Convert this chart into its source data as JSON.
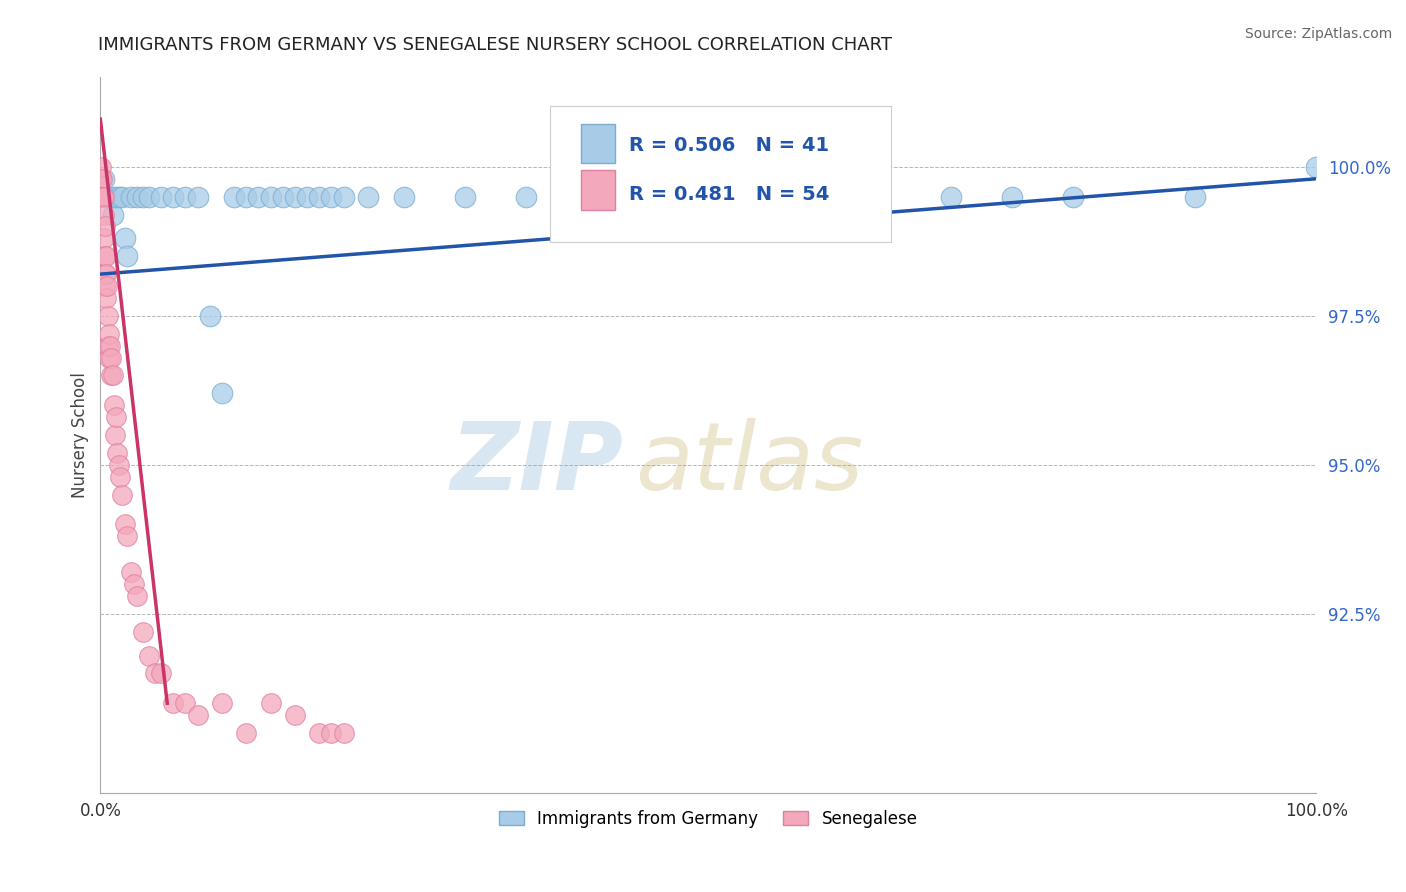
{
  "title": "IMMIGRANTS FROM GERMANY VS SENEGALESE NURSERY SCHOOL CORRELATION CHART",
  "source": "Source: ZipAtlas.com",
  "ylabel": "Nursery School",
  "legend_blue_label": "Immigrants from Germany",
  "legend_pink_label": "Senegalese",
  "R_blue": 0.506,
  "N_blue": 41,
  "R_pink": 0.481,
  "N_pink": 54,
  "blue_color": "#A8CCE8",
  "pink_color": "#F4A8BC",
  "blue_line_color": "#2255AA",
  "pink_line_color": "#CC3366",
  "watermark_zip": "ZIP",
  "watermark_atlas": "atlas",
  "blue_x": [
    0.3,
    0.5,
    0.8,
    1.0,
    1.2,
    1.5,
    1.8,
    2.0,
    2.2,
    2.5,
    3.0,
    3.5,
    4.0,
    5.0,
    6.0,
    7.0,
    8.0,
    9.0,
    10.0,
    11.0,
    12.0,
    13.0,
    14.0,
    15.0,
    16.0,
    17.0,
    18.0,
    19.0,
    20.0,
    22.0,
    25.0,
    30.0,
    35.0,
    40.0,
    50.0,
    60.0,
    70.0,
    75.0,
    80.0,
    90.0,
    100.0
  ],
  "blue_y": [
    99.8,
    99.5,
    99.5,
    99.2,
    99.5,
    99.5,
    99.5,
    98.8,
    98.5,
    99.5,
    99.5,
    99.5,
    99.5,
    99.5,
    99.5,
    99.5,
    99.5,
    97.5,
    96.2,
    99.5,
    99.5,
    99.5,
    99.5,
    99.5,
    99.5,
    99.5,
    99.5,
    99.5,
    99.5,
    99.5,
    99.5,
    99.5,
    99.5,
    99.5,
    99.5,
    99.5,
    99.5,
    99.5,
    99.5,
    99.5,
    100.0
  ],
  "pink_x": [
    0.05,
    0.08,
    0.1,
    0.12,
    0.15,
    0.18,
    0.2,
    0.22,
    0.25,
    0.28,
    0.3,
    0.32,
    0.35,
    0.38,
    0.4,
    0.42,
    0.45,
    0.48,
    0.5,
    0.55,
    0.6,
    0.65,
    0.7,
    0.75,
    0.8,
    0.85,
    0.9,
    1.0,
    1.1,
    1.2,
    1.3,
    1.4,
    1.5,
    1.6,
    1.8,
    2.0,
    2.2,
    2.5,
    2.8,
    3.0,
    3.5,
    4.0,
    4.5,
    5.0,
    6.0,
    7.0,
    8.0,
    10.0,
    12.0,
    14.0,
    16.0,
    18.0,
    19.0,
    20.0
  ],
  "pink_y": [
    99.8,
    100.0,
    99.5,
    99.8,
    99.5,
    99.5,
    99.5,
    99.5,
    99.5,
    99.5,
    99.2,
    98.8,
    99.0,
    98.5,
    98.2,
    98.0,
    98.5,
    98.2,
    97.8,
    98.0,
    97.5,
    97.0,
    97.2,
    96.8,
    97.0,
    96.5,
    96.8,
    96.5,
    96.0,
    95.5,
    95.8,
    95.2,
    95.0,
    94.8,
    94.5,
    94.0,
    93.8,
    93.2,
    93.0,
    92.8,
    92.2,
    91.8,
    91.5,
    91.5,
    91.0,
    91.0,
    90.8,
    91.0,
    90.5,
    91.0,
    90.8,
    90.5,
    90.5,
    90.5
  ],
  "xlim": [
    0.0,
    100.0
  ],
  "ylim": [
    89.5,
    101.5
  ],
  "yticks": [
    92.5,
    95.0,
    97.5,
    100.0
  ],
  "blue_trend_x": [
    0,
    100
  ],
  "blue_trend_y_start": 98.2,
  "blue_trend_y_end": 99.8,
  "pink_trend_x_start": 0.0,
  "pink_trend_x_end": 5.5,
  "pink_trend_y_start": 100.8,
  "pink_trend_y_end": 91.0
}
